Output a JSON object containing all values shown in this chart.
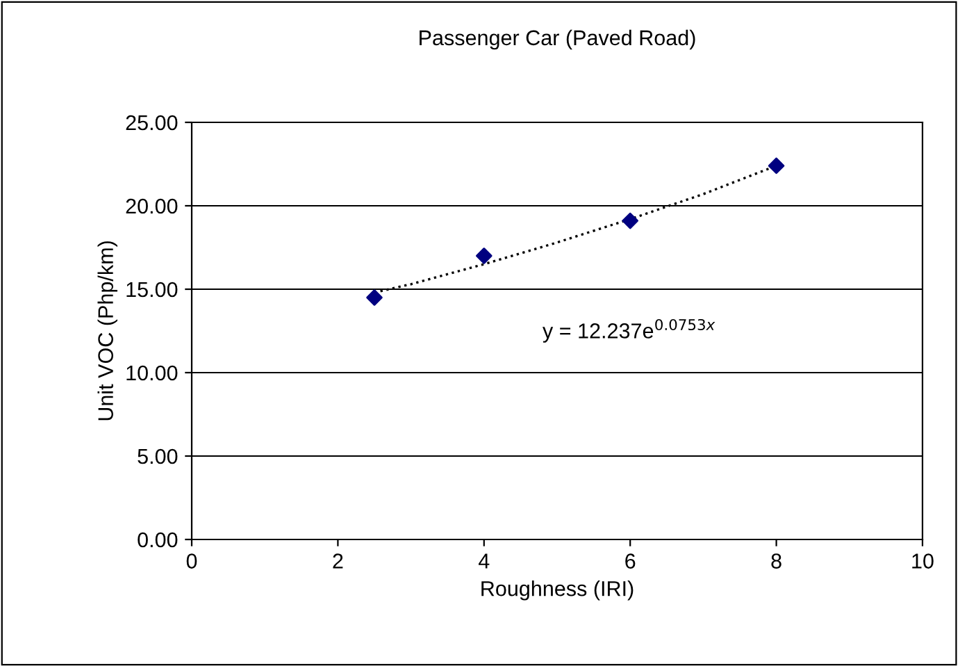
{
  "chart_data": {
    "type": "scatter",
    "title": "Passenger Car (Paved Road)",
    "xlabel": "Roughness (IRI)",
    "ylabel": "Unit VOC (Php/km)",
    "series": [
      {
        "color": "#000080",
        "marker": "diamond",
        "x": [
          2.5,
          4,
          6,
          8
        ],
        "values": [
          14.5,
          17.0,
          19.1,
          22.4
        ]
      },
      {
        "type": "line",
        "color": "#000000",
        "line_style": "dotted",
        "marker": "none",
        "x": [
          2.5,
          3,
          4,
          5,
          6,
          7,
          8
        ],
        "values": [
          14.8,
          15.3,
          16.5,
          17.8,
          19.2,
          20.7,
          22.4
        ]
      }
    ],
    "annotations": [
      "y = 12.237e$^{0.0753x}$"
    ],
    "xlim": [
      0,
      10
    ],
    "xticks": [
      0,
      2,
      4,
      6,
      8,
      10
    ],
    "ylim": [
      0,
      25
    ],
    "yticks": [
      {
        "value": 0,
        "label": "0.00"
      },
      {
        "value": 5,
        "label": "5.00"
      },
      {
        "value": 10,
        "label": "10.00"
      },
      {
        "value": 15,
        "label": "15.00"
      },
      {
        "value": 20,
        "label": "20.00"
      },
      {
        "value": 25,
        "label": "25.00"
      }
    ],
    "grid": "y"
  }
}
